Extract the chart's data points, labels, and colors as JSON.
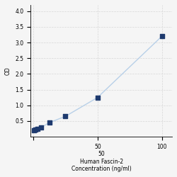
{
  "x_values": [
    0.78,
    1.563,
    3.125,
    6.25,
    12.5,
    25,
    50,
    100
  ],
  "y_values": [
    0.2,
    0.22,
    0.25,
    0.3,
    0.45,
    0.65,
    1.25,
    3.2
  ],
  "x_label_line1": "Human Fascin-2",
  "x_label_line2": "Concentration (ng/ml)",
  "x_mid_label": "50",
  "y_label": "OD",
  "x_ticks": [
    0,
    50,
    100
  ],
  "x_lim": [
    -2,
    108
  ],
  "y_lim": [
    0,
    4.2
  ],
  "y_ticks": [
    0.5,
    1,
    1.5,
    2,
    2.5,
    3,
    3.5,
    4
  ],
  "line_color": "#b8d0e8",
  "marker_color": "#1e3a6e",
  "marker_size": 4,
  "grid_color": "#d8d8d8",
  "background_color": "#f5f5f5",
  "axis_fontsize": 5.5,
  "tick_fontsize": 5.5
}
